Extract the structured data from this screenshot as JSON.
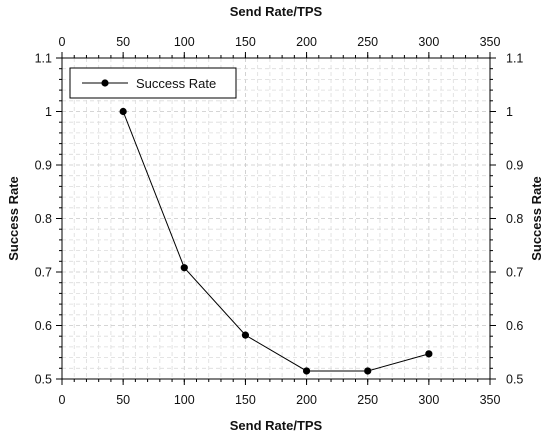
{
  "chart_data": {
    "type": "line",
    "xlabel": "Send Rate/TPS",
    "ylabel": "Success Rate",
    "xlim": [
      0,
      350
    ],
    "ylim": [
      0.5,
      1.1
    ],
    "x_ticks": [
      0,
      50,
      100,
      150,
      200,
      250,
      300,
      350
    ],
    "y_ticks": [
      0.5,
      0.6,
      0.7,
      0.8,
      0.9,
      1,
      1.1
    ],
    "x_tick_labels": [
      "0",
      "50",
      "100",
      "150",
      "200",
      "250",
      "300",
      "350"
    ],
    "y_tick_labels": [
      "0.5",
      "0.6",
      "0.7",
      "0.8",
      "0.9",
      "1",
      "1.1"
    ],
    "grid": true,
    "legend_position": "top-left",
    "series": [
      {
        "name": "Success Rate",
        "color": "#000000",
        "marker": "circle",
        "x": [
          50,
          100,
          150,
          200,
          250,
          300
        ],
        "y": [
          1.0,
          0.708,
          0.582,
          0.515,
          0.515,
          0.547
        ]
      }
    ]
  }
}
